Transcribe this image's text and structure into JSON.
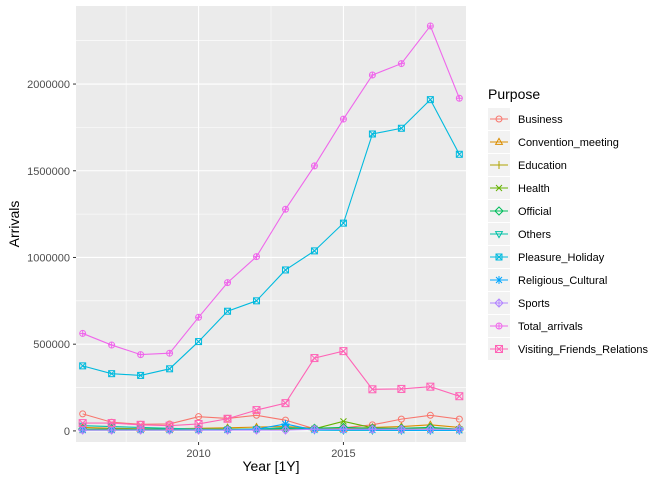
{
  "chart_data": {
    "type": "line",
    "xlabel": "Year [1Y]",
    "ylabel": "Arrivals",
    "legend_title": "Purpose",
    "legend_position": "right",
    "grid": true,
    "xlim": [
      2005.77,
      2019.23
    ],
    "ylim": [
      -64000,
      2450000
    ],
    "x_ticks": [
      2010,
      2015
    ],
    "x_tick_labels": [
      "2010",
      "2015"
    ],
    "y_ticks": [
      0,
      500000,
      1000000,
      1500000,
      2000000
    ],
    "y_tick_labels": [
      "0",
      "500000",
      "1000000",
      "1500000",
      "2000000"
    ],
    "x": [
      2006,
      2007,
      2008,
      2009,
      2010,
      2011,
      2012,
      2013,
      2014,
      2015,
      2016,
      2017,
      2018,
      2019
    ],
    "series": [
      {
        "name": "Business",
        "color": "#F8766D",
        "marker": "circle",
        "values": [
          98000,
          50000,
          38000,
          40000,
          82000,
          72000,
          90000,
          62000,
          12000,
          18000,
          35000,
          68000,
          90000,
          68000
        ]
      },
      {
        "name": "Convention_meeting",
        "color": "#DB8E00",
        "marker": "triangle",
        "values": [
          20000,
          15000,
          12000,
          12000,
          15000,
          18000,
          22000,
          25000,
          15000,
          12000,
          20000,
          25000,
          35000,
          20000
        ]
      },
      {
        "name": "Education",
        "color": "#AEA200",
        "marker": "plus",
        "values": [
          8000,
          8000,
          8000,
          8000,
          8000,
          8000,
          10000,
          12000,
          10000,
          10000,
          12000,
          12000,
          12000,
          10000
        ]
      },
      {
        "name": "Health",
        "color": "#64B200",
        "marker": "cross",
        "values": [
          5000,
          5000,
          5000,
          5000,
          5000,
          8000,
          10000,
          15000,
          12000,
          55000,
          18000,
          10000,
          12000,
          10000
        ]
      },
      {
        "name": "Official",
        "color": "#00BD5C",
        "marker": "diamond",
        "values": [
          10000,
          10000,
          10000,
          10000,
          10000,
          10000,
          10000,
          15000,
          15000,
          20000,
          15000,
          15000,
          20000,
          10000
        ]
      },
      {
        "name": "Others",
        "color": "#00C1A7",
        "marker": "triangle-down",
        "values": [
          30000,
          25000,
          20000,
          15000,
          10000,
          5000,
          8000,
          20000,
          5000,
          3000,
          3000,
          3000,
          3000,
          3000
        ]
      },
      {
        "name": "Pleasure_Holiday",
        "color": "#00BADE",
        "marker": "square-cross",
        "values": [
          375000,
          330000,
          320000,
          358000,
          515000,
          690000,
          750000,
          928000,
          1038000,
          1198000,
          1712000,
          1745000,
          1910000,
          1595000
        ]
      },
      {
        "name": "Religious_Cultural",
        "color": "#00A6FF",
        "marker": "asterisk",
        "values": [
          5000,
          5000,
          5000,
          5000,
          5000,
          5000,
          10000,
          40000,
          5000,
          5000,
          5000,
          3000,
          3000,
          3000
        ]
      },
      {
        "name": "Sports",
        "color": "#B385FF",
        "marker": "diamond-plus",
        "values": [
          5000,
          5000,
          5000,
          5000,
          5000,
          5000,
          5000,
          5000,
          10000,
          10000,
          10000,
          10000,
          10000,
          10000
        ]
      },
      {
        "name": "Total_arrivals",
        "color": "#EF67EB",
        "marker": "circle-plus",
        "values": [
          562000,
          495000,
          440000,
          448000,
          655000,
          855000,
          1005000,
          1278000,
          1528000,
          1798000,
          2052000,
          2118000,
          2335000,
          1918000
        ]
      },
      {
        "name": "Visiting_Friends_Relations",
        "color": "#FF63B6",
        "marker": "square-x",
        "values": [
          45000,
          45000,
          35000,
          30000,
          40000,
          70000,
          120000,
          160000,
          420000,
          460000,
          240000,
          242000,
          255000,
          200000
        ]
      }
    ]
  }
}
